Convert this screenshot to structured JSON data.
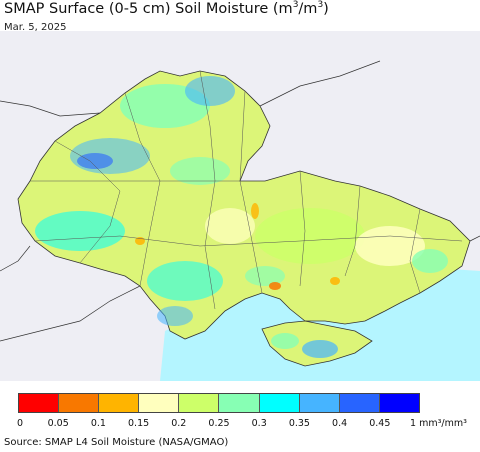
{
  "header": {
    "title_prefix": "SMAP Surface (0-5 cm) Soil Moisture (m",
    "title_sup1": "3",
    "title_mid": "/m",
    "title_sup2": "3",
    "title_suffix": ")",
    "date": "Mar. 5, 2025"
  },
  "legend": {
    "colors": [
      "#ff0000",
      "#f87800",
      "#ffb400",
      "#ffffbe",
      "#cdff69",
      "#87ffb4",
      "#00ffff",
      "#46b4ff",
      "#2864ff",
      "#0000ff"
    ],
    "ticks": [
      "0",
      "0.05",
      "0.1",
      "0.15",
      "0.2",
      "0.25",
      "0.3",
      "0.35",
      "0.4",
      "0.45"
    ],
    "unit": "1 mm³/mm³"
  },
  "footer": {
    "source": "Source: SMAP L4 Soil Moisture (NASA/GMAO)"
  },
  "map": {
    "sea_color": "#b4f5ff",
    "outside_color": "#eeeef4",
    "land_base_color": "#dcf578"
  }
}
